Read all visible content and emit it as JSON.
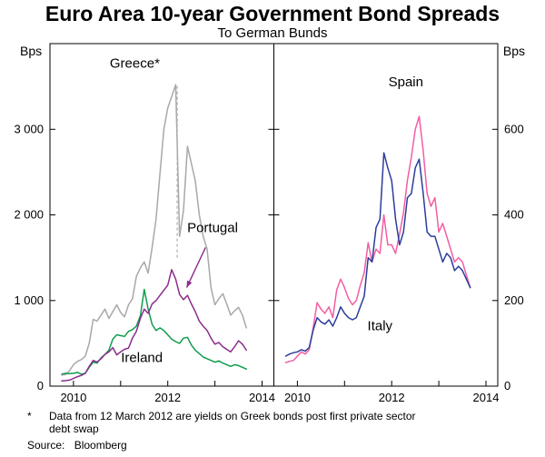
{
  "title": "Euro Area 10-year Government Bond Spreads",
  "subtitle": "To German Bunds",
  "axis": {
    "left_unit": "Bps",
    "right_unit": "Bps"
  },
  "footnote": {
    "marker": "*",
    "text": "Data from 12 March 2012 are yields on Greek bonds post first private sector debt swap"
  },
  "source": {
    "label": "Source:",
    "text": "Bloomberg"
  },
  "chart_data": [
    {
      "type": "line",
      "panel": "left",
      "title": "",
      "xlabel": "",
      "ylabel": "Bps",
      "ylim": [
        0,
        4000
      ],
      "yticks": [
        0,
        1000,
        2000,
        3000
      ],
      "ytick_labels": [
        "0",
        "1 000",
        "2 000",
        "3 000"
      ],
      "xlim": [
        2009.5,
        2014.25
      ],
      "xticks": [
        2010,
        2011,
        2012,
        2013,
        2014
      ],
      "xtick_labels": [
        "2010",
        "",
        "2012",
        "",
        "2014"
      ],
      "grid": false,
      "legend": "inline-labels",
      "x": [
        2009.75,
        2009.833,
        2009.917,
        2010.0,
        2010.083,
        2010.167,
        2010.25,
        2010.333,
        2010.417,
        2010.5,
        2010.583,
        2010.667,
        2010.75,
        2010.833,
        2010.917,
        2011.0,
        2011.083,
        2011.167,
        2011.25,
        2011.333,
        2011.417,
        2011.5,
        2011.583,
        2011.667,
        2011.75,
        2011.833,
        2011.917,
        2012.0,
        2012.083,
        2012.167,
        2012.25,
        2012.333,
        2012.417,
        2012.5,
        2012.583,
        2012.667,
        2012.75,
        2012.833,
        2012.917,
        2013.0,
        2013.083,
        2013.167,
        2013.25,
        2013.333,
        2013.417,
        2013.5,
        2013.583,
        2013.667
      ],
      "series": [
        {
          "name": "Greece",
          "label": "Greece*",
          "color": "#a8a8a8",
          "values": [
            130,
            135,
            180,
            250,
            290,
            310,
            350,
            500,
            780,
            760,
            830,
            900,
            790,
            870,
            950,
            860,
            810,
            950,
            1020,
            1280,
            1380,
            1450,
            1320,
            1620,
            1950,
            2480,
            3000,
            3250,
            3380,
            3520,
            1750,
            2050,
            2800,
            2600,
            2400,
            2000,
            1750,
            1600,
            1150,
            950,
            1020,
            1080,
            960,
            830,
            880,
            920,
            830,
            680
          ]
        },
        {
          "name": "Ireland",
          "label": "Ireland",
          "color": "#0f9d4c",
          "values": [
            140,
            150,
            145,
            150,
            160,
            140,
            150,
            220,
            280,
            270,
            330,
            370,
            420,
            550,
            600,
            590,
            580,
            640,
            660,
            700,
            820,
            1130,
            900,
            720,
            650,
            680,
            650,
            600,
            550,
            520,
            500,
            560,
            570,
            480,
            420,
            380,
            340,
            320,
            300,
            280,
            295,
            270,
            250,
            230,
            250,
            240,
            220,
            200
          ]
        },
        {
          "name": "Portugal",
          "label": "Portugal",
          "color": "#8b2d8b",
          "values": [
            60,
            65,
            70,
            90,
            110,
            125,
            150,
            230,
            300,
            280,
            320,
            370,
            400,
            450,
            365,
            400,
            430,
            445,
            560,
            640,
            790,
            900,
            850,
            960,
            1000,
            1060,
            1120,
            1180,
            1360,
            1250,
            1070,
            1010,
            1060,
            960,
            870,
            760,
            700,
            650,
            560,
            490,
            510,
            460,
            430,
            400,
            460,
            530,
            490,
            420
          ]
        }
      ],
      "annotations": [
        {
          "type": "vline_dashed",
          "x": 2012.2,
          "y1": 1500,
          "y2": 3520,
          "color": "#b0b0b0"
        },
        {
          "type": "label",
          "text": "Greece*",
          "x": 2011.3,
          "y": 3720,
          "color": "#a0a0a0"
        },
        {
          "type": "label",
          "text": "Portugal",
          "x": 2012.95,
          "y": 1800,
          "color": "#8b2d8b"
        },
        {
          "type": "arrow",
          "x1": 2012.8,
          "y1": 1620,
          "x2": 2012.4,
          "y2": 1150,
          "color": "#8b2d8b"
        },
        {
          "type": "label",
          "text": "Ireland",
          "x": 2011.45,
          "y": 280,
          "color": "#0f9d4c"
        }
      ]
    },
    {
      "type": "line",
      "panel": "right",
      "title": "",
      "xlabel": "",
      "ylabel": "Bps",
      "ylim": [
        0,
        800
      ],
      "yticks": [
        0,
        200,
        400,
        600
      ],
      "ytick_labels": [
        "0",
        "200",
        "400",
        "600"
      ],
      "xlim": [
        2009.5,
        2014.25
      ],
      "xticks": [
        2010,
        2011,
        2012,
        2013,
        2014
      ],
      "xtick_labels": [
        "2010",
        "",
        "2012",
        "",
        "2014"
      ],
      "grid": false,
      "legend": "inline-labels",
      "x": [
        2009.75,
        2009.833,
        2009.917,
        2010.0,
        2010.083,
        2010.167,
        2010.25,
        2010.333,
        2010.417,
        2010.5,
        2010.583,
        2010.667,
        2010.75,
        2010.833,
        2010.917,
        2011.0,
        2011.083,
        2011.167,
        2011.25,
        2011.333,
        2011.417,
        2011.5,
        2011.583,
        2011.667,
        2011.75,
        2011.833,
        2011.917,
        2012.0,
        2012.083,
        2012.167,
        2012.25,
        2012.333,
        2012.417,
        2012.5,
        2012.583,
        2012.667,
        2012.75,
        2012.833,
        2012.917,
        2013.0,
        2013.083,
        2013.167,
        2013.25,
        2013.333,
        2013.417,
        2013.5,
        2013.583,
        2013.667
      ],
      "series": [
        {
          "name": "Spain",
          "label": "Spain",
          "color": "#f25ea2",
          "values": [
            55,
            58,
            60,
            70,
            80,
            75,
            85,
            135,
            195,
            180,
            170,
            185,
            160,
            225,
            250,
            230,
            205,
            190,
            200,
            235,
            265,
            335,
            290,
            320,
            310,
            400,
            330,
            330,
            310,
            355,
            405,
            480,
            535,
            600,
            630,
            550,
            450,
            420,
            440,
            360,
            380,
            350,
            320,
            290,
            300,
            290,
            260,
            230
          ]
        },
        {
          "name": "Italy",
          "label": "Italy",
          "color": "#2b3d9b",
          "values": [
            70,
            75,
            78,
            80,
            85,
            82,
            90,
            130,
            160,
            150,
            145,
            155,
            140,
            160,
            185,
            170,
            160,
            155,
            160,
            185,
            210,
            300,
            290,
            370,
            390,
            545,
            510,
            480,
            390,
            330,
            360,
            440,
            450,
            510,
            530,
            450,
            360,
            350,
            350,
            320,
            290,
            310,
            300,
            270,
            280,
            270,
            250,
            230
          ]
        }
      ],
      "annotations": [
        {
          "type": "label",
          "text": "Spain",
          "x": 2012.3,
          "y": 700,
          "color": "#f25ea2"
        },
        {
          "type": "label",
          "text": "Italy",
          "x": 2011.75,
          "y": 130,
          "color": "#2b3d9b"
        }
      ]
    }
  ]
}
